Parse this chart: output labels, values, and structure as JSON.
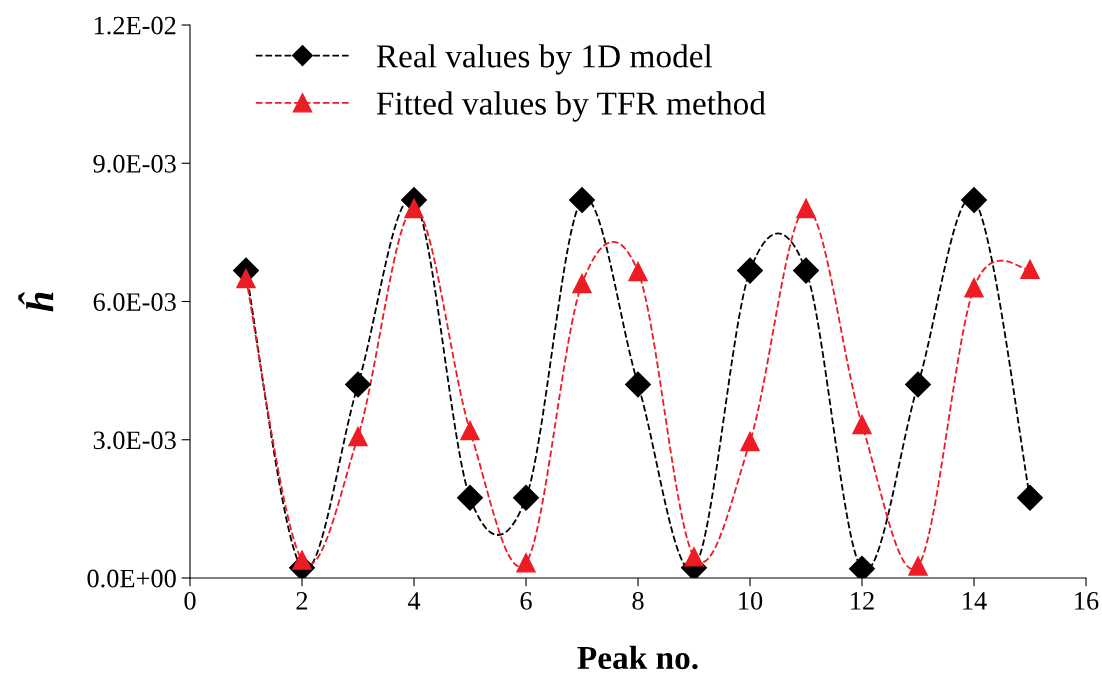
{
  "chart_data": {
    "type": "line",
    "xlabel": "Peak no.",
    "ylabel": "ĥ",
    "x": [
      1,
      2,
      3,
      4,
      5,
      6,
      7,
      8,
      9,
      10,
      11,
      12,
      13,
      14,
      15
    ],
    "series": [
      {
        "name": "Real values by 1D model",
        "color": "#000000",
        "marker": "diamond",
        "values": [
          0.00667,
          0.00022,
          0.0042,
          0.0082,
          0.00174,
          0.00174,
          0.0082,
          0.0042,
          0.00022,
          0.00667,
          0.00667,
          0.0002,
          0.0042,
          0.0082,
          0.00174
        ]
      },
      {
        "name": "Fitted values by TFR method",
        "color": "#ed1c24",
        "marker": "triangle",
        "values": [
          0.0065,
          0.00039,
          0.00307,
          0.00802,
          0.0032,
          0.00033,
          0.00639,
          0.00665,
          0.00046,
          0.00296,
          0.00802,
          0.00333,
          0.00026,
          0.0063,
          0.0067
        ]
      }
    ],
    "line_style": "dashed",
    "xlim": [
      0,
      16
    ],
    "xticks": [
      0,
      2,
      4,
      6,
      8,
      10,
      12,
      14,
      16
    ],
    "ylim": [
      0,
      0.012
    ],
    "yticks": [
      {
        "value": 0,
        "label": "0.0E+00"
      },
      {
        "value": 0.003,
        "label": "3.0E-03"
      },
      {
        "value": 0.006,
        "label": "6.0E-03"
      },
      {
        "value": 0.009,
        "label": "9.0E-03"
      },
      {
        "value": 0.012,
        "label": "1.2E-02"
      }
    ],
    "grid": false,
    "legend": "top left"
  }
}
